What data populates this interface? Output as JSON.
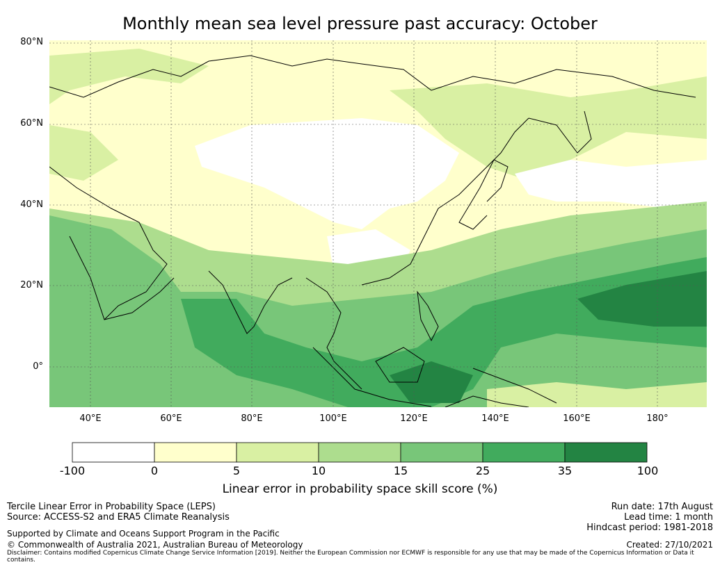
{
  "title": "Monthly mean sea level pressure past accuracy: October",
  "map": {
    "lat_labels": [
      "80°N",
      "60°N",
      "40°N",
      "20°N",
      "0°"
    ],
    "lon_labels": [
      "40°E",
      "60°E",
      "80°E",
      "100°E",
      "120°E",
      "140°E",
      "160°E",
      "180°"
    ],
    "gridlines": true,
    "lon_range": [
      30,
      192
    ],
    "lat_range": [
      -10,
      80
    ]
  },
  "colorbar": {
    "ticks": [
      "-100",
      "0",
      "5",
      "10",
      "15",
      "25",
      "35",
      "100"
    ],
    "colors": [
      "#ffffff",
      "#ffffcc",
      "#d9f0a3",
      "#addd8e",
      "#78c679",
      "#41ab5d",
      "#238443"
    ],
    "label": "Linear error in probability space skill score (%)"
  },
  "footer": {
    "left_line1": "Tercile Linear Error in Probability Space (LEPS)",
    "left_line2": "Source: ACCESS-S2 and ERA5 Climate Reanalysis",
    "supported": "Supported by Climate and Oceans Support Program in the Pacific",
    "copyright": "© Commonwealth of Australia 2021, Australian Bureau of Meteorology",
    "run_date": "Run date: 17th August",
    "lead_time": "Lead time: 1 month",
    "hindcast": "Hindcast period: 1981-2018",
    "created": "Created: 27/10/2021",
    "disclaimer": "Disclaimer: Contains modified Copernicus Climate Change Service Information [2019]. Neither the European Commission nor ECMWF is responsible for any use that may be made of the Copernicus Information or Data it contains."
  }
}
